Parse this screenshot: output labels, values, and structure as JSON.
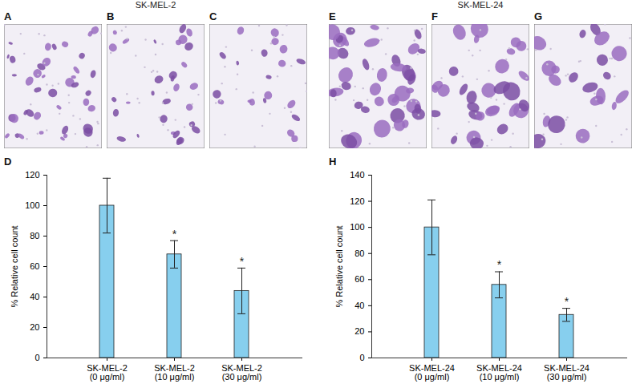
{
  "figure": {
    "groups": [
      {
        "title": "SK-MEL-2",
        "images": [
          "A",
          "B",
          "C"
        ]
      },
      {
        "title": "SK-MEL-24",
        "images": [
          "E",
          "F",
          "G"
        ]
      }
    ]
  },
  "chart_data": [
    {
      "type": "bar",
      "title": "D",
      "y_label": "% Relative cell count",
      "categories": [
        "SK-MEL-2\n(0 μg/ml)",
        "SK-MEL-2\n(10 μg/ml)",
        "SK-MEL-2\n(30 μg/ml)"
      ],
      "values": [
        100,
        68,
        44
      ],
      "errors": [
        18,
        9,
        15
      ],
      "annotations": [
        null,
        "*",
        "*"
      ],
      "color": "#87cfee",
      "ylim": [
        0,
        120
      ],
      "yticks": [
        0,
        20,
        40,
        60,
        80,
        100,
        120
      ]
    },
    {
      "type": "bar",
      "title": "H",
      "y_label": "% Relative cell count",
      "categories": [
        "SK-MEL-24\n(0 μg/ml)",
        "SK-MEL-24\n(10 μg/ml)",
        "SK-MEL-24\n(30 μg/ml)"
      ],
      "values": [
        100,
        56,
        33
      ],
      "errors": [
        21,
        10,
        5
      ],
      "annotations": [
        null,
        "*",
        "*"
      ],
      "color": "#87cfee",
      "ylim": [
        0,
        140
      ],
      "yticks": [
        0,
        20,
        40,
        60,
        80,
        100,
        120,
        140
      ]
    }
  ]
}
